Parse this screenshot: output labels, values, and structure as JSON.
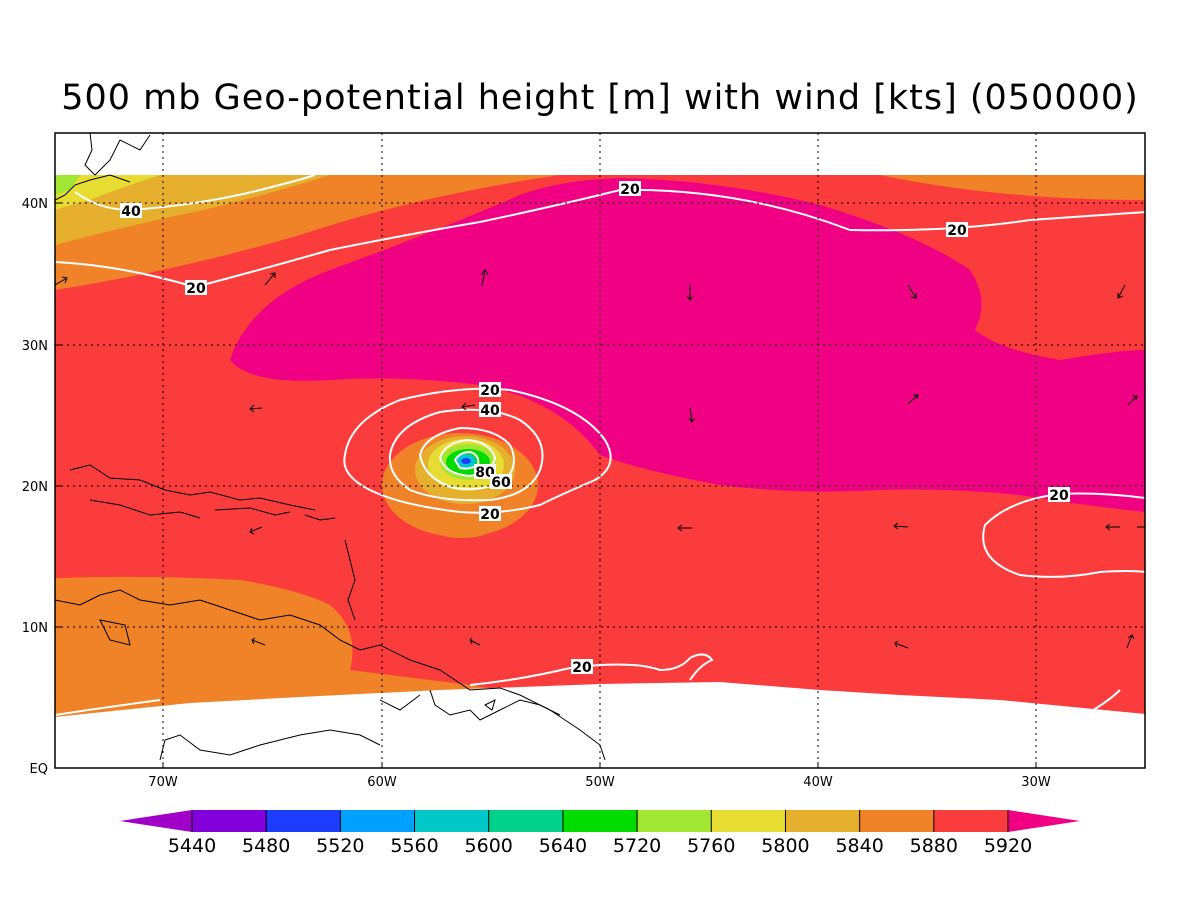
{
  "title": "500 mb Geo-potential height [m] with wind [kts] (050000)",
  "map": {
    "lon_ticks": [
      "70W",
      "60W",
      "50W",
      "40W",
      "30W"
    ],
    "lat_ticks": [
      "EQ",
      "10N",
      "20N",
      "30N",
      "40N"
    ],
    "contour_labels": [
      "40",
      "20",
      "20",
      "20",
      "20",
      "40",
      "80",
      "60",
      "20",
      "20",
      "20"
    ]
  },
  "colorbar": {
    "labels": [
      "5440",
      "5480",
      "5520",
      "5560",
      "5600",
      "5640",
      "5720",
      "5760",
      "5800",
      "5840",
      "5880",
      "5920"
    ],
    "colors": [
      "#a000c8",
      "#8200dc",
      "#1e3cff",
      "#00a0ff",
      "#00c8c8",
      "#00d28c",
      "#00dc00",
      "#a0e632",
      "#e6dc32",
      "#e6af2d",
      "#f08228",
      "#fa3c3c",
      "#f00082"
    ]
  }
}
